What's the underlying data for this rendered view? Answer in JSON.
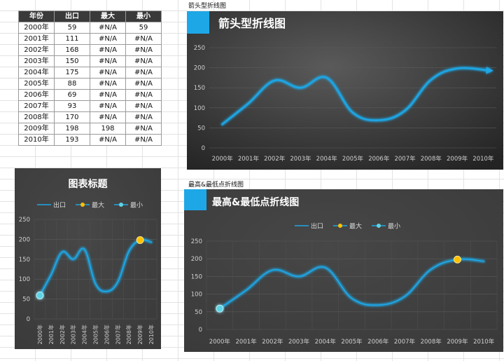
{
  "table": {
    "headers": [
      "年份",
      "出口",
      "最大",
      "最小"
    ],
    "rows": [
      [
        "2000年",
        "59",
        "#N/A",
        "59"
      ],
      [
        "2001年",
        "111",
        "#N/A",
        "#N/A"
      ],
      [
        "2002年",
        "168",
        "#N/A",
        "#N/A"
      ],
      [
        "2003年",
        "150",
        "#N/A",
        "#N/A"
      ],
      [
        "2004年",
        "175",
        "#N/A",
        "#N/A"
      ],
      [
        "2005年",
        "88",
        "#N/A",
        "#N/A"
      ],
      [
        "2006年",
        "69",
        "#N/A",
        "#N/A"
      ],
      [
        "2007年",
        "93",
        "#N/A",
        "#N/A"
      ],
      [
        "2008年",
        "170",
        "#N/A",
        "#N/A"
      ],
      [
        "2009年",
        "198",
        "198",
        "#N/A"
      ],
      [
        "2010年",
        "193",
        "#N/A",
        "#N/A"
      ]
    ]
  },
  "labels": {
    "arrow_sheet": "箭头型折线图",
    "hilo_sheet": "最高&最低点折线图"
  },
  "colors": {
    "line": "#1ea7e6",
    "max_marker": "#ffc000",
    "min_marker": "#5fd3e6",
    "title_block": "#1ea7e6",
    "panel_bg": "#404040"
  },
  "chart_data": [
    {
      "type": "line",
      "title": "箭头型折线图",
      "categories": [
        "2000年",
        "2001年",
        "2002年",
        "2003年",
        "2004年",
        "2005年",
        "2006年",
        "2007年",
        "2008年",
        "2009年",
        "2010年"
      ],
      "series": [
        {
          "name": "",
          "values": [
            59,
            111,
            168,
            150,
            175,
            88,
            69,
            93,
            170,
            198,
            193
          ]
        }
      ],
      "yticks": [
        "0",
        "50",
        "100",
        "150",
        "200",
        "250"
      ],
      "ylim": [
        0,
        250
      ],
      "grid": true,
      "line_end": "arrow",
      "xlabel": "",
      "ylabel": ""
    },
    {
      "type": "line",
      "title": "图表标题",
      "categories": [
        "2000年",
        "2001年",
        "2002年",
        "2003年",
        "2004年",
        "2005年",
        "2006年",
        "2007年",
        "2008年",
        "2009年",
        "2010年"
      ],
      "series": [
        {
          "name": "出口",
          "values": [
            59,
            111,
            168,
            150,
            175,
            88,
            69,
            93,
            170,
            198,
            193
          ]
        },
        {
          "name": "最大",
          "values": [
            null,
            null,
            null,
            null,
            null,
            null,
            null,
            null,
            null,
            198,
            null
          ]
        },
        {
          "name": "最小",
          "values": [
            59,
            null,
            null,
            null,
            null,
            null,
            null,
            null,
            null,
            null,
            null
          ]
        }
      ],
      "yticks": [
        "0",
        "50",
        "100",
        "150",
        "200",
        "250"
      ],
      "ylim": [
        0,
        250
      ],
      "grid": true,
      "legend": "top",
      "xlabel": "",
      "ylabel": ""
    },
    {
      "type": "line",
      "title": "最高&最低点折线图",
      "categories": [
        "2000年",
        "2001年",
        "2002年",
        "2003年",
        "2004年",
        "2005年",
        "2006年",
        "2007年",
        "2008年",
        "2009年",
        "2010年"
      ],
      "series": [
        {
          "name": "出口",
          "values": [
            59,
            111,
            168,
            150,
            175,
            88,
            69,
            93,
            170,
            198,
            193
          ]
        },
        {
          "name": "最大",
          "values": [
            null,
            null,
            null,
            null,
            null,
            null,
            null,
            null,
            null,
            198,
            null
          ]
        },
        {
          "name": "最小",
          "values": [
            59,
            null,
            null,
            null,
            null,
            null,
            null,
            null,
            null,
            null,
            null
          ]
        }
      ],
      "yticks": [
        "0",
        "50",
        "100",
        "150",
        "200",
        "250"
      ],
      "ylim": [
        0,
        250
      ],
      "grid": true,
      "legend": "top",
      "xlabel": "",
      "ylabel": ""
    }
  ]
}
